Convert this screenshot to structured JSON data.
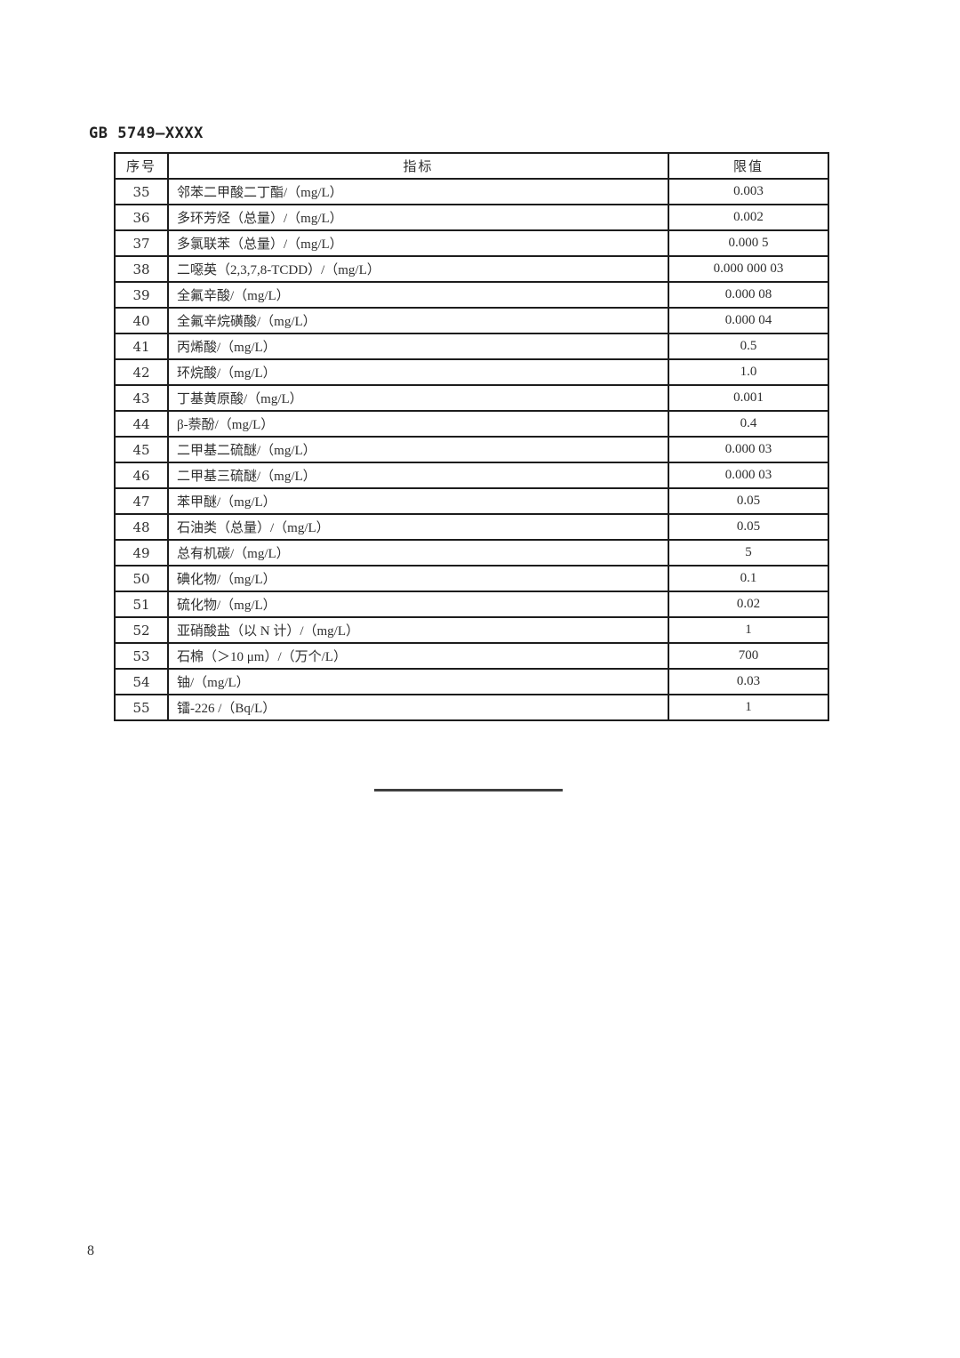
{
  "page": {
    "doc_code": "GB 5749—XXXX",
    "page_number": "8"
  },
  "table": {
    "col_no": "序号",
    "col_indicator": "指标",
    "col_limit": "限值",
    "rows": [
      {
        "no": "35",
        "indicator": "邻苯二甲酸二丁酯/（mg/L）",
        "limit": "0.003"
      },
      {
        "no": "36",
        "indicator": "多环芳烃（总量）/（mg/L）",
        "limit": "0.002"
      },
      {
        "no": "37",
        "indicator": "多氯联苯（总量）/（mg/L）",
        "limit": "0.000 5"
      },
      {
        "no": "38",
        "indicator": "二噁英（2,3,7,8-TCDD）/（mg/L）",
        "limit": "0.000 000 03"
      },
      {
        "no": "39",
        "indicator": "全氟辛酸/（mg/L）",
        "limit": "0.000 08"
      },
      {
        "no": "40",
        "indicator": "全氟辛烷磺酸/（mg/L）",
        "limit": "0.000 04"
      },
      {
        "no": "41",
        "indicator": "丙烯酸/（mg/L）",
        "limit": "0.5"
      },
      {
        "no": "42",
        "indicator": "环烷酸/（mg/L）",
        "limit": "1.0"
      },
      {
        "no": "43",
        "indicator": "丁基黄原酸/（mg/L）",
        "limit": "0.001"
      },
      {
        "no": "44",
        "indicator": "β-萘酚/（mg/L）",
        "limit": "0.4"
      },
      {
        "no": "45",
        "indicator": "二甲基二硫醚/（mg/L）",
        "limit": "0.000 03"
      },
      {
        "no": "46",
        "indicator": "二甲基三硫醚/（mg/L）",
        "limit": "0.000 03"
      },
      {
        "no": "47",
        "indicator": "苯甲醚/（mg/L）",
        "limit": "0.05"
      },
      {
        "no": "48",
        "indicator": "石油类（总量）/（mg/L）",
        "limit": "0.05"
      },
      {
        "no": "49",
        "indicator": "总有机碳/（mg/L）",
        "limit": "5"
      },
      {
        "no": "50",
        "indicator": "碘化物/（mg/L）",
        "limit": "0.1"
      },
      {
        "no": "51",
        "indicator": "硫化物/（mg/L）",
        "limit": "0.02"
      },
      {
        "no": "52",
        "indicator": "亚硝酸盐（以 N 计）/（mg/L）",
        "limit": "1"
      },
      {
        "no": "53",
        "indicator": "石棉（＞10 μm）/（万个/L）",
        "limit": "700"
      },
      {
        "no": "54",
        "indicator": "铀/（mg/L）",
        "limit": "0.03"
      },
      {
        "no": "55",
        "indicator": "镭-226 /（Bq/L）",
        "limit": "1"
      }
    ]
  },
  "colors": {
    "border": "#1d1d1d",
    "text": "#2e2e2e",
    "background": "#ffffff"
  }
}
